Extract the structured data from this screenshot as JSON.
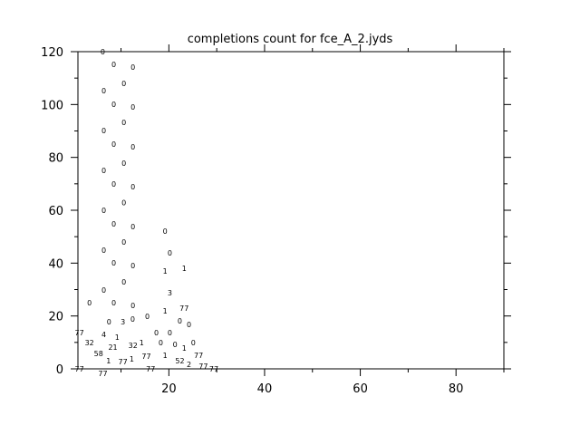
{
  "chart_data": {
    "type": "scatter",
    "title": "completions count for fce_A_2.jyds",
    "xlabel": "",
    "ylabel": "",
    "xlim": [
      1,
      90
    ],
    "ylim": [
      0,
      120
    ],
    "xticks": [
      20,
      40,
      60,
      80
    ],
    "yticks": [
      0,
      20,
      40,
      60,
      80,
      100,
      120
    ],
    "grid": false,
    "marker": "text labels",
    "points": [
      {
        "x": 6.2,
        "y": 120,
        "label": "0"
      },
      {
        "x": 8.5,
        "y": 115.2,
        "label": "0"
      },
      {
        "x": 12.5,
        "y": 114.2,
        "label": "0"
      },
      {
        "x": 10.6,
        "y": 108,
        "label": "0"
      },
      {
        "x": 6.4,
        "y": 105.2,
        "label": "0"
      },
      {
        "x": 8.5,
        "y": 100.1,
        "label": "0"
      },
      {
        "x": 12.5,
        "y": 99.1,
        "label": "0"
      },
      {
        "x": 10.6,
        "y": 93.2,
        "label": "0"
      },
      {
        "x": 6.4,
        "y": 90.2,
        "label": "0"
      },
      {
        "x": 8.5,
        "y": 85,
        "label": "0"
      },
      {
        "x": 12.5,
        "y": 84,
        "label": "0"
      },
      {
        "x": 10.6,
        "y": 77.8,
        "label": "0"
      },
      {
        "x": 6.4,
        "y": 75.1,
        "label": "0"
      },
      {
        "x": 8.5,
        "y": 70,
        "label": "0"
      },
      {
        "x": 12.5,
        "y": 68.9,
        "label": "0"
      },
      {
        "x": 10.6,
        "y": 63,
        "label": "0"
      },
      {
        "x": 6.4,
        "y": 60,
        "label": "0"
      },
      {
        "x": 8.5,
        "y": 54.9,
        "label": "0"
      },
      {
        "x": 12.5,
        "y": 53.8,
        "label": "0"
      },
      {
        "x": 10.6,
        "y": 48,
        "label": "0"
      },
      {
        "x": 6.4,
        "y": 44.9,
        "label": "0"
      },
      {
        "x": 8.5,
        "y": 40.1,
        "label": "0"
      },
      {
        "x": 12.5,
        "y": 39.1,
        "label": "0"
      },
      {
        "x": 10.6,
        "y": 32.9,
        "label": "0"
      },
      {
        "x": 6.4,
        "y": 29.8,
        "label": "0"
      },
      {
        "x": 3.4,
        "y": 25,
        "label": "0"
      },
      {
        "x": 8.5,
        "y": 25,
        "label": "0"
      },
      {
        "x": 12.5,
        "y": 24,
        "label": "0"
      },
      {
        "x": 7.5,
        "y": 17.8,
        "label": "0"
      },
      {
        "x": 10.4,
        "y": 17.8,
        "label": "3"
      },
      {
        "x": 11.5,
        "y": 18.9,
        "label": "0"
      },
      {
        "x": 15.5,
        "y": 19.9,
        "label": "0"
      },
      {
        "x": 19.2,
        "y": 52.1,
        "label": "0"
      },
      {
        "x": 20.2,
        "y": 43.9,
        "label": "0"
      },
      {
        "x": 19.2,
        "y": 37,
        "label": "1"
      },
      {
        "x": 23.2,
        "y": 38,
        "label": "1"
      },
      {
        "x": 20.2,
        "y": 28.8,
        "label": "3"
      },
      {
        "x": 19.2,
        "y": 21.9,
        "label": "1"
      },
      {
        "x": 23.2,
        "y": 23,
        "label": "77"
      },
      {
        "x": 22.3,
        "y": 19.9,
        "label": "0"
      },
      {
        "x": 24.2,
        "y": 16.8,
        "label": "0"
      },
      {
        "x": 1.3,
        "y": 13.7,
        "label": "77"
      },
      {
        "x": 6.4,
        "y": 14.7,
        "label": "4"
      },
      {
        "x": 9.2,
        "y": 12,
        "label": "1"
      },
      {
        "x": 3.4,
        "y": 9.9,
        "label": "32"
      },
      {
        "x": 8.3,
        "y": 9.9,
        "label": "21"
      },
      {
        "x": 12.5,
        "y": 8.9,
        "label": "32"
      },
      {
        "x": 14.3,
        "y": 9.9,
        "label": "1"
      },
      {
        "x": 17.4,
        "y": 13.7,
        "label": "0"
      },
      {
        "x": 20.2,
        "y": 13.7,
        "label": "0"
      },
      {
        "x": 21.3,
        "y": 11,
        "label": "0"
      },
      {
        "x": 18.3,
        "y": 9.9,
        "label": "0"
      },
      {
        "x": 25.1,
        "y": 9.9,
        "label": "0"
      },
      {
        "x": 19.2,
        "y": 6.9,
        "label": "1"
      },
      {
        "x": 23.2,
        "y": 7.9,
        "label": "1"
      },
      {
        "x": 26.2,
        "y": 6.9,
        "label": "77"
      },
      {
        "x": 5.3,
        "y": 5.8,
        "label": "58"
      },
      {
        "x": 7.4,
        "y": 3.1,
        "label": "1"
      },
      {
        "x": 10.4,
        "y": 2.7,
        "label": "77"
      },
      {
        "x": 11.3,
        "y": 3.8,
        "label": "1"
      },
      {
        "x": 15.3,
        "y": 4.8,
        "label": "77"
      },
      {
        "x": 22.3,
        "y": 4.8,
        "label": "52"
      },
      {
        "x": 24.2,
        "y": 1.7,
        "label": "2"
      },
      {
        "x": 27.2,
        "y": 1,
        "label": "77"
      },
      {
        "x": 29.4,
        "y": 0,
        "label": "77"
      },
      {
        "x": 1.3,
        "y": 0,
        "label": "77"
      },
      {
        "x": 6.2,
        "y": 0,
        "label": "77"
      },
      {
        "x": 16.2,
        "y": 0,
        "label": "77"
      }
    ]
  }
}
